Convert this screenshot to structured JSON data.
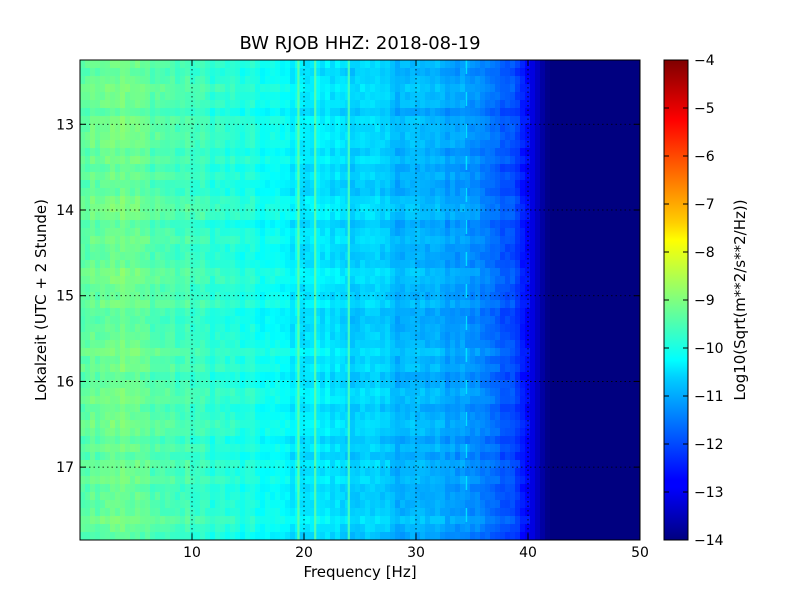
{
  "chart_data": {
    "type": "heatmap",
    "title": "BW RJOB HHZ: 2018-08-19",
    "xlabel": "Frequency [Hz]",
    "ylabel": "Lokalzeit (UTC + 2 Stunde)",
    "xlim": [
      0,
      50
    ],
    "ylim": [
      12.25,
      17.85
    ],
    "y_inverted": true,
    "x_ticks": [
      "10",
      "20",
      "30",
      "40",
      "50"
    ],
    "y_ticks": [
      "13",
      "14",
      "15",
      "16",
      "17"
    ],
    "grid": true,
    "colormap": "jet",
    "colorbar": {
      "label": "Log10(Sqrt(m**2/s**2/Hz))",
      "range": [
        -14,
        -4
      ],
      "ticks": [
        "−4",
        "−5",
        "−6",
        "−7",
        "−8",
        "−9",
        "−10",
        "−11",
        "−12",
        "−13",
        "−14"
      ]
    },
    "profile": {
      "description_values_freq_hz": [
        0,
        3,
        8,
        12,
        16,
        19,
        22,
        26,
        30,
        34,
        37,
        39,
        40.5,
        41.5,
        42,
        50
      ],
      "log10_amplitude": [
        -9.3,
        -9.1,
        -9.5,
        -9.8,
        -10.1,
        -10.35,
        -10.5,
        -10.75,
        -11.0,
        -11.2,
        -11.6,
        -12.2,
        -13.1,
        -13.8,
        -14,
        -14
      ]
    },
    "lines_hz": [
      19.5,
      21.0,
      24.0,
      34.5
    ]
  },
  "colors": {
    "axis": "#000000",
    "grid": "#000000",
    "background": "#ffffff"
  }
}
